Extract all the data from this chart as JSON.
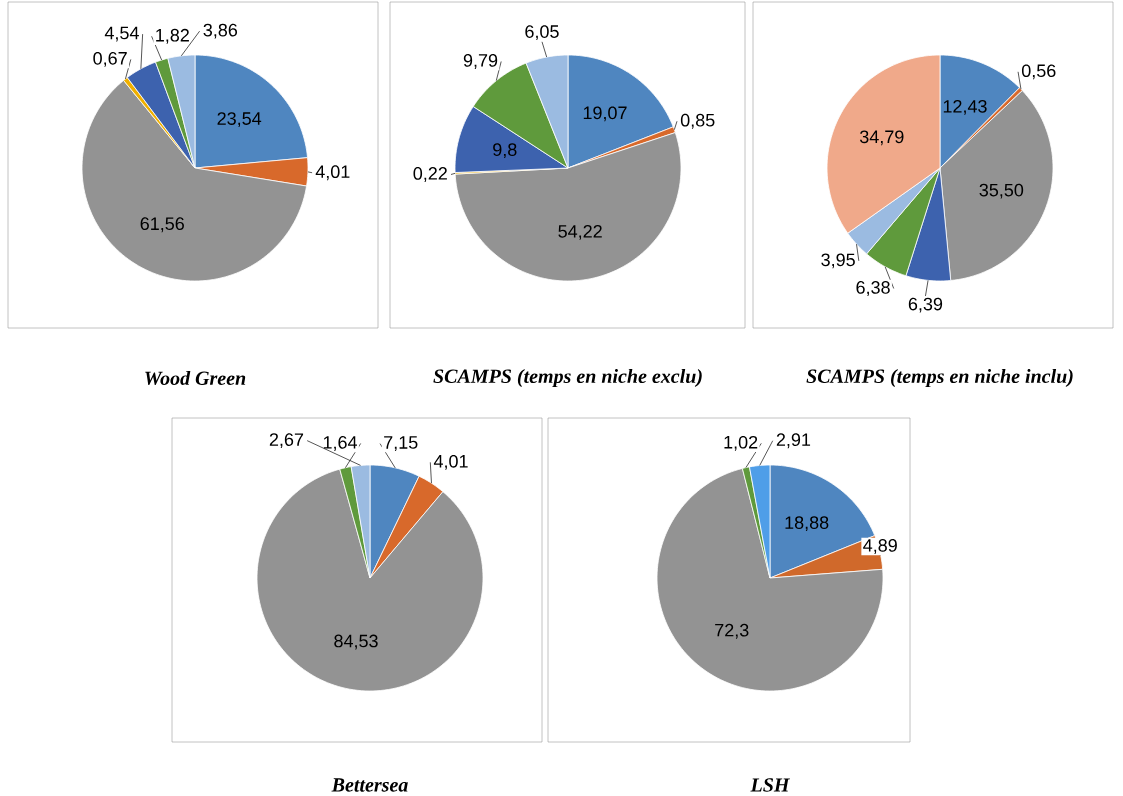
{
  "chart_data": [
    {
      "type": "pie",
      "title": "Wood Green",
      "categories": [
        null,
        null,
        null,
        null,
        null,
        null,
        null
      ],
      "values": [
        23.54,
        4.01,
        61.56,
        0.67,
        4.54,
        1.82,
        3.86
      ],
      "value_labels": [
        "23,54",
        "4,01",
        "61,56",
        "0,67",
        "4,54",
        "1,82",
        "3,86"
      ],
      "colors": [
        "#4f86c0",
        "#d8692b",
        "#939393",
        "#f0b000",
        "#3d62ae",
        "#5f9a3c",
        "#9bbbe1"
      ]
    },
    {
      "type": "pie",
      "title": "SCAMPS (temps en niche exclu)",
      "categories": [
        null,
        null,
        null,
        null,
        null,
        null,
        null
      ],
      "values": [
        19.07,
        0.85,
        54.22,
        0.22,
        9.8,
        9.79,
        6.05
      ],
      "value_labels": [
        "19,07",
        "0,85",
        "54,22",
        "0,22",
        "9,8",
        "9,79",
        "6,05"
      ],
      "colors": [
        "#4f86c0",
        "#d8692b",
        "#939393",
        "#f0b000",
        "#3d62ae",
        "#5f9a3c",
        "#9bbbe1"
      ]
    },
    {
      "type": "pie",
      "title": "SCAMPS (temps en niche inclu)",
      "categories": [
        null,
        null,
        null,
        null,
        null,
        null,
        null
      ],
      "values": [
        12.43,
        0.56,
        35.5,
        6.39,
        6.38,
        3.95,
        34.79
      ],
      "value_labels": [
        "12,43",
        "0,56",
        "35,50",
        "6,39",
        "6,38",
        "3,95",
        "34,79"
      ],
      "colors": [
        "#4f86c0",
        "#d8692b",
        "#939393",
        "#3d62ae",
        "#5f9a3c",
        "#9bbbe1",
        "#f0a98a"
      ]
    },
    {
      "type": "pie",
      "title": "Bettersea",
      "categories": [
        null,
        null,
        null,
        null,
        null
      ],
      "values": [
        7.15,
        4.01,
        84.53,
        1.64,
        2.67
      ],
      "value_labels": [
        "7,15",
        "4,01",
        "84,53",
        "1,64",
        "2,67"
      ],
      "colors": [
        "#4f86c0",
        "#d8692b",
        "#939393",
        "#5f9a3c",
        "#9bbbe1"
      ]
    },
    {
      "type": "pie",
      "title": "LSH",
      "categories": [
        null,
        null,
        null,
        null,
        null
      ],
      "values": [
        18.88,
        4.89,
        72.3,
        1.02,
        2.91
      ],
      "value_labels": [
        "18,88",
        "4,89",
        "72,3",
        "1,02",
        "2,91"
      ],
      "colors": [
        "#4f86c0",
        "#d0692b",
        "#939393",
        "#5f9a3c",
        "#4f9ee8"
      ]
    }
  ]
}
